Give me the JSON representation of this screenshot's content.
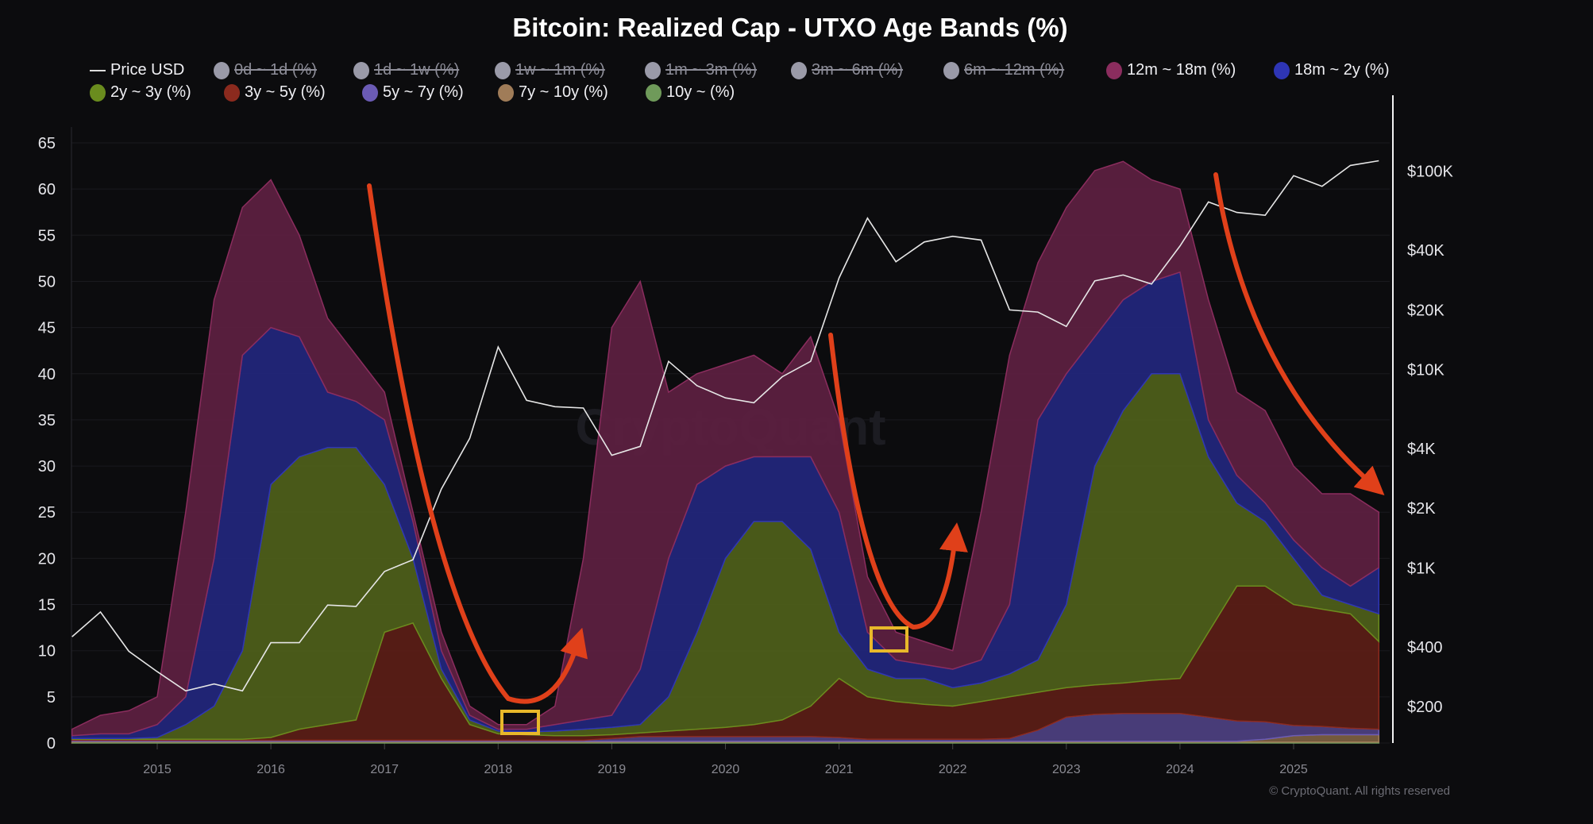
{
  "chart_data": {
    "type": "area",
    "stacked": true,
    "title": "Bitcoin: Realized Cap - UTXO Age Bands (%)",
    "watermark": "CryptoQuant",
    "copyright": "© CryptoQuant. All rights reserved",
    "legend_placement": "top-left",
    "grid": true,
    "x": [
      "2014-04",
      "2014-07",
      "2014-10",
      "2015-01",
      "2015-04",
      "2015-07",
      "2015-10",
      "2016-01",
      "2016-04",
      "2016-07",
      "2016-10",
      "2017-01",
      "2017-04",
      "2017-07",
      "2017-10",
      "2018-01",
      "2018-04",
      "2018-07",
      "2018-10",
      "2019-01",
      "2019-04",
      "2019-07",
      "2019-10",
      "2020-01",
      "2020-04",
      "2020-07",
      "2020-10",
      "2021-01",
      "2021-04",
      "2021-07",
      "2021-10",
      "2022-01",
      "2022-04",
      "2022-07",
      "2022-10",
      "2023-01",
      "2023-04",
      "2023-07",
      "2023-10",
      "2024-01",
      "2024-04",
      "2024-07",
      "2024-10",
      "2025-01",
      "2025-04",
      "2025-07",
      "2025-10"
    ],
    "x_ticks": [
      "2015",
      "2016",
      "2017",
      "2018",
      "2019",
      "2020",
      "2021",
      "2022",
      "2023",
      "2024",
      "2025"
    ],
    "y_left": {
      "ticks": [
        "0",
        "5",
        "10",
        "15",
        "20",
        "25",
        "30",
        "35",
        "40",
        "45",
        "50",
        "55",
        "60",
        "65"
      ],
      "range": [
        0,
        65
      ]
    },
    "y_right": {
      "scale": "log",
      "ticks": [
        200,
        400,
        1000,
        2000,
        4000,
        10000,
        20000,
        40000,
        100000
      ],
      "tick_labels": [
        "$200",
        "$400",
        "$1K",
        "$2K",
        "$4K",
        "$10K",
        "$20K",
        "$40K",
        "$100K"
      ],
      "range": [
        131,
        139000
      ]
    },
    "legend": [
      {
        "label": "Price USD",
        "kind": "line",
        "color": "#dcdcdc",
        "hidden": false
      },
      {
        "label": "0d ~ 1d (%)",
        "color": "#9a9aa8",
        "hidden": true
      },
      {
        "label": "1d ~ 1w (%)",
        "color": "#9a9aa8",
        "hidden": true
      },
      {
        "label": "1w ~ 1m (%)",
        "color": "#9a9aa8",
        "hidden": true
      },
      {
        "label": "1m ~ 3m (%)",
        "color": "#9a9aa8",
        "hidden": true
      },
      {
        "label": "3m ~ 6m (%)",
        "color": "#9a9aa8",
        "hidden": true
      },
      {
        "label": "6m ~ 12m (%)",
        "color": "#9a9aa8",
        "hidden": true
      },
      {
        "label": "12m ~ 18m (%)",
        "color": "#8b2d5e",
        "hidden": false
      },
      {
        "label": "18m ~ 2y (%)",
        "color": "#2e35b5",
        "hidden": false
      },
      {
        "label": "2y ~ 3y (%)",
        "color": "#6a8c1e",
        "hidden": false
      },
      {
        "label": "3y ~ 5y (%)",
        "color": "#8b2a1e",
        "hidden": false
      },
      {
        "label": "5y ~ 7y (%)",
        "color": "#6b5bb5",
        "hidden": false
      },
      {
        "label": "7y ~ 10y (%)",
        "color": "#a07c58",
        "hidden": false
      },
      {
        "label": "10y ~ (%)",
        "color": "#6f9a5a",
        "hidden": false
      }
    ],
    "series": [
      {
        "name": "10y ~ (%)",
        "fill": "#5f8a4c",
        "values": [
          0.1,
          0.1,
          0.1,
          0.1,
          0.1,
          0.1,
          0.1,
          0.1,
          0.1,
          0.1,
          0.1,
          0.1,
          0.1,
          0.1,
          0.1,
          0.1,
          0.1,
          0.1,
          0.1,
          0.1,
          0.1,
          0.1,
          0.1,
          0.1,
          0.1,
          0.1,
          0.1,
          0.1,
          0.1,
          0.1,
          0.1,
          0.1,
          0.1,
          0.1,
          0.1,
          0.1,
          0.1,
          0.1,
          0.1,
          0.1,
          0.1,
          0.1,
          0.1,
          0.1,
          0.1,
          0.1,
          0.1
        ]
      },
      {
        "name": "7y ~ 10y (%)",
        "fill": "#7a5e40",
        "values": [
          0.1,
          0.1,
          0.1,
          0.1,
          0.1,
          0.1,
          0.1,
          0.1,
          0.1,
          0.1,
          0.1,
          0.1,
          0.1,
          0.1,
          0.1,
          0.1,
          0.1,
          0.1,
          0.1,
          0.1,
          0.1,
          0.1,
          0.1,
          0.1,
          0.1,
          0.1,
          0.1,
          0.1,
          0.1,
          0.1,
          0.1,
          0.1,
          0.1,
          0.1,
          0.1,
          0.1,
          0.1,
          0.1,
          0.1,
          0.1,
          0.1,
          0.1,
          0.3,
          0.7,
          0.8,
          0.8,
          0.8
        ]
      },
      {
        "name": "5y ~ 7y (%)",
        "fill": "#4c3f7e",
        "values": [
          0.1,
          0.1,
          0.1,
          0.1,
          0.1,
          0.1,
          0.1,
          0.1,
          0.1,
          0.1,
          0.1,
          0.1,
          0.1,
          0.1,
          0.1,
          0.1,
          0.1,
          0.1,
          0.1,
          0.3,
          0.5,
          0.5,
          0.5,
          0.5,
          0.5,
          0.5,
          0.5,
          0.4,
          0.2,
          0.2,
          0.2,
          0.2,
          0.2,
          0.3,
          1.2,
          2.6,
          2.9,
          3.0,
          3.0,
          3.0,
          2.6,
          2.2,
          1.9,
          1.1,
          0.9,
          0.7,
          0.6
        ]
      },
      {
        "name": "3y ~ 5y (%)",
        "fill": "#5a1e16",
        "values": [
          0.1,
          0.1,
          0.1,
          0.1,
          0.1,
          0.1,
          0.1,
          0.3,
          1.2,
          1.7,
          2.2,
          11.7,
          12.7,
          6.7,
          1.7,
          0.7,
          0.6,
          0.5,
          0.5,
          0.4,
          0.4,
          0.6,
          0.8,
          1.0,
          1.3,
          1.8,
          3.3,
          6.4,
          4.6,
          4.1,
          3.8,
          3.6,
          4.1,
          4.5,
          4.1,
          3.2,
          3.2,
          3.3,
          3.6,
          3.8,
          9.2,
          14.6,
          14.7,
          13.1,
          12.7,
          12.4,
          9.5
        ]
      },
      {
        "name": "2y ~ 3y (%)",
        "fill": "#4d5e1a",
        "values": [
          0.1,
          0.1,
          0.1,
          0.2,
          1.6,
          3.6,
          9.6,
          27.4,
          29.5,
          30,
          29.5,
          16,
          7,
          1,
          0.5,
          0.3,
          0.3,
          0.5,
          0.7,
          0.8,
          0.9,
          3.7,
          10.5,
          18.3,
          22,
          21.5,
          17,
          5,
          3,
          2.5,
          2.8,
          2,
          2,
          2.5,
          3.5,
          9,
          23.7,
          29.5,
          33.2,
          33,
          19,
          9,
          7,
          5,
          1.5,
          1,
          3
        ]
      },
      {
        "name": "18m ~ 2y (%)",
        "fill": "#22267a",
        "values": [
          0.3,
          0.5,
          0.5,
          1.4,
          3,
          16,
          32,
          17,
          13,
          6,
          5,
          7,
          4,
          2,
          0.5,
          0.2,
          0.3,
          0.7,
          1,
          1.3,
          6,
          15,
          16,
          10,
          7,
          7,
          10,
          13,
          4,
          2,
          1.5,
          2,
          2.5,
          7.5,
          26,
          25,
          14,
          12,
          10,
          11,
          4,
          3,
          2,
          2,
          3,
          2,
          5
        ]
      },
      {
        "name": "12m ~ 18m (%)",
        "fill": "#5c2040",
        "values": [
          0.7,
          2,
          2.5,
          3,
          20,
          28,
          16,
          16,
          11,
          8,
          5,
          3,
          1,
          2,
          1,
          0.5,
          0.5,
          2,
          17.5,
          42,
          42,
          18,
          12,
          11,
          11,
          9,
          13,
          10,
          6,
          3,
          2.5,
          2,
          16,
          27,
          17,
          18,
          18,
          15,
          11,
          9,
          13,
          9,
          10,
          8,
          8,
          10,
          6
        ]
      }
    ],
    "price": {
      "name": "Price USD",
      "axis": "right",
      "color": "#e6e6e6",
      "values": [
        450,
        600,
        380,
        300,
        240,
        260,
        240,
        420,
        420,
        650,
        640,
        960,
        1100,
        2500,
        4500,
        13000,
        7000,
        6500,
        6400,
        3700,
        4100,
        11000,
        8300,
        7200,
        6800,
        9200,
        11000,
        29000,
        58000,
        35000,
        44000,
        47000,
        45000,
        20000,
        19500,
        16500,
        28000,
        30000,
        27000,
        42000,
        70000,
        62000,
        60000,
        95000,
        84000,
        107000,
        113000
      ]
    },
    "annotations": {
      "arrow_color": "#e0401a",
      "box_color": "#e8b82a"
    }
  }
}
